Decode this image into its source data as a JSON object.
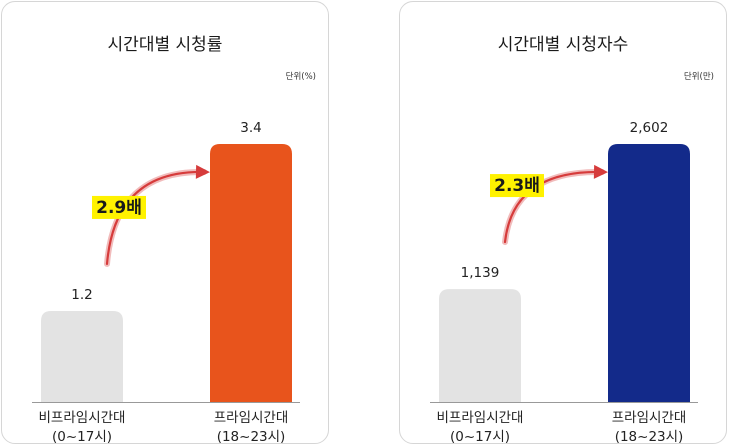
{
  "chart_data": [
    {
      "type": "bar",
      "title": "시간대별 시청률",
      "unit": "단위(%)",
      "categories": [
        {
          "line1": "비프라임시간대",
          "line2": "(0~17시)"
        },
        {
          "line1": "프라임시간대",
          "line2": "(18~23시)"
        }
      ],
      "values": [
        1.2,
        3.4
      ],
      "value_labels": [
        "1.2",
        "3.4"
      ],
      "colors": [
        "#e3e3e3",
        "#e8541c"
      ],
      "multiplier": "2.9배",
      "highlight_color": "#fff200",
      "arrow_color": "#d63b3b",
      "grid": false
    },
    {
      "type": "bar",
      "title": "시간대별 시청자수",
      "unit": "단위(만)",
      "categories": [
        {
          "line1": "비프라임시간대",
          "line2": "(0~17시)"
        },
        {
          "line1": "프라임시간대",
          "line2": "(18~23시)"
        }
      ],
      "values": [
        1139,
        2602
      ],
      "value_labels": [
        "1,139",
        "2,602"
      ],
      "colors": [
        "#e3e3e3",
        "#132a8a"
      ],
      "multiplier": "2.3배",
      "highlight_color": "#fff200",
      "arrow_color": "#d63b3b",
      "grid": false
    }
  ]
}
